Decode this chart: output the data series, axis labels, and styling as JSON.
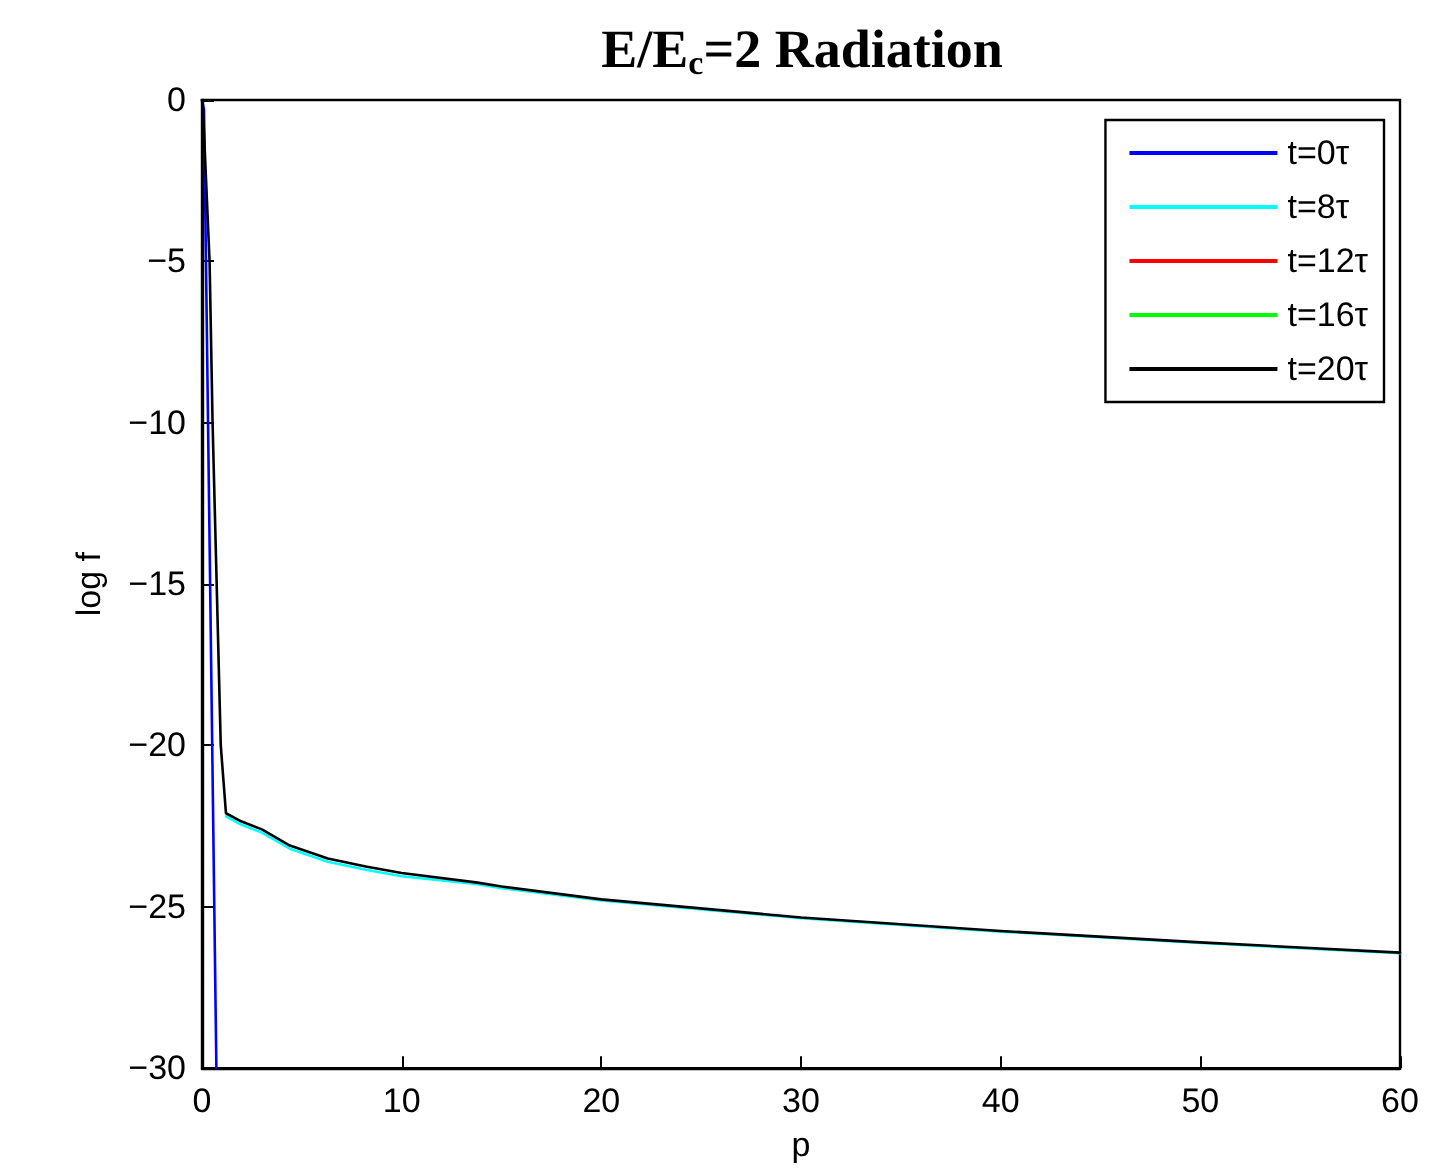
{
  "chart_data": {
    "type": "line",
    "title": "E/E$_{c}$=2 Radiation",
    "xlabel": "p",
    "ylabel": "log f",
    "x": [
      0,
      0.05,
      0.38,
      0.53,
      0.94,
      1.2,
      1.96,
      3,
      4.4,
      6.3,
      8.2,
      10,
      13.8,
      15,
      20,
      30,
      40,
      50,
      60
    ],
    "series": [
      {
        "name": "t=0τ",
        "color": "#0000ff",
        "x": [
          0,
          0.1,
          0.72
        ],
        "values": [
          0,
          -0.3,
          -30
        ]
      },
      {
        "name": "t=8τ",
        "color": "#00ffff",
        "values": [
          null,
          null,
          null,
          null,
          null,
          -22.2,
          -22.45,
          -22.7,
          -23.2,
          -23.6,
          -23.85,
          -24.05,
          -24.3,
          -24.42,
          -24.8,
          -25.35,
          -25.77,
          -26.12,
          -26.44
        ]
      },
      {
        "name": "t=12τ",
        "color": "#ff0000",
        "values": [
          null,
          null,
          null,
          null,
          null,
          null,
          null,
          null,
          null,
          null,
          null,
          null,
          null,
          null,
          null,
          null,
          null,
          null,
          null
        ]
      },
      {
        "name": "t=16τ",
        "color": "#00ff00",
        "values": [
          null,
          null,
          null,
          null,
          null,
          null,
          null,
          null,
          null,
          null,
          null,
          null,
          null,
          null,
          null,
          null,
          null,
          null,
          null
        ]
      },
      {
        "name": "t=20τ",
        "color": "#000000",
        "values": [
          0,
          -0.3,
          -5,
          -10,
          -20,
          -22.1,
          -22.35,
          -22.6,
          -23.1,
          -23.5,
          -23.75,
          -23.95,
          -24.25,
          -24.37,
          -24.77,
          -25.33,
          -25.75,
          -26.1,
          -26.42
        ]
      }
    ],
    "xlim": [
      0,
      60
    ],
    "xticks": [
      0,
      10,
      20,
      30,
      40,
      50,
      60
    ],
    "ylim": [
      -30,
      0
    ],
    "yticks": [
      -30,
      -25,
      -20,
      -15,
      -10,
      -5,
      0
    ],
    "grid": false,
    "legend": "top right",
    "marker": "none",
    "line_style": "solid"
  }
}
